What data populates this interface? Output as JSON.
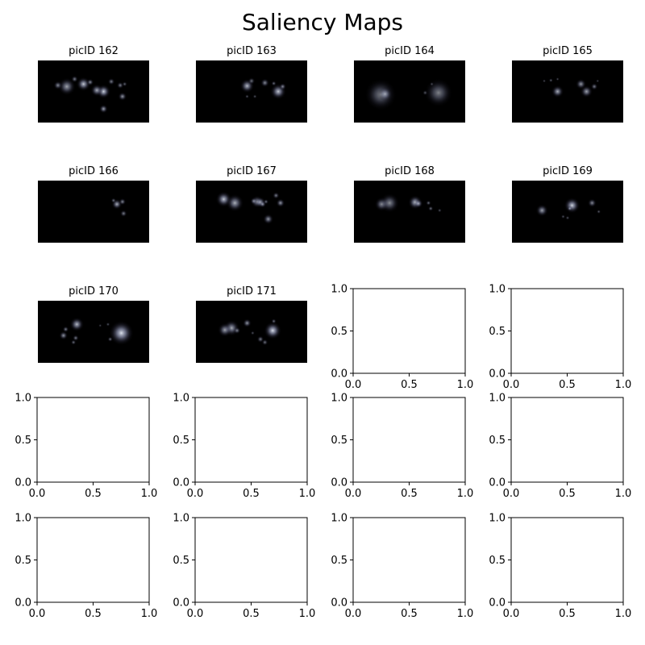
{
  "chart_data": {
    "type": "heatmap",
    "title": "Saliency Maps",
    "colormap": "bone",
    "grid": false,
    "layout": {
      "rows": 5,
      "cols": 4
    },
    "maps": [
      {
        "title": "picID 162",
        "spots": [
          {
            "x": 0.26,
            "y": 0.42,
            "r": 0.05,
            "v": 0.7
          },
          {
            "x": 0.41,
            "y": 0.38,
            "r": 0.04,
            "v": 0.85
          },
          {
            "x": 0.59,
            "y": 0.5,
            "r": 0.04,
            "v": 0.9
          },
          {
            "x": 0.53,
            "y": 0.48,
            "r": 0.035,
            "v": 0.75
          },
          {
            "x": 0.18,
            "y": 0.4,
            "r": 0.025,
            "v": 0.6
          },
          {
            "x": 0.33,
            "y": 0.3,
            "r": 0.02,
            "v": 0.55
          },
          {
            "x": 0.47,
            "y": 0.35,
            "r": 0.02,
            "v": 0.6
          },
          {
            "x": 0.66,
            "y": 0.34,
            "r": 0.02,
            "v": 0.55
          },
          {
            "x": 0.74,
            "y": 0.4,
            "r": 0.02,
            "v": 0.55
          },
          {
            "x": 0.76,
            "y": 0.58,
            "r": 0.025,
            "v": 0.65
          },
          {
            "x": 0.59,
            "y": 0.78,
            "r": 0.025,
            "v": 0.7
          },
          {
            "x": 0.78,
            "y": 0.38,
            "r": 0.015,
            "v": 0.45
          }
        ]
      },
      {
        "title": "picID 163",
        "spots": [
          {
            "x": 0.46,
            "y": 0.41,
            "r": 0.04,
            "v": 0.8
          },
          {
            "x": 0.74,
            "y": 0.5,
            "r": 0.045,
            "v": 0.85
          },
          {
            "x": 0.62,
            "y": 0.36,
            "r": 0.025,
            "v": 0.6
          },
          {
            "x": 0.5,
            "y": 0.33,
            "r": 0.02,
            "v": 0.5
          },
          {
            "x": 0.78,
            "y": 0.42,
            "r": 0.02,
            "v": 0.6
          },
          {
            "x": 0.7,
            "y": 0.37,
            "r": 0.015,
            "v": 0.5
          },
          {
            "x": 0.46,
            "y": 0.58,
            "r": 0.012,
            "v": 0.4
          },
          {
            "x": 0.53,
            "y": 0.58,
            "r": 0.012,
            "v": 0.4
          }
        ]
      },
      {
        "title": "picID 164",
        "spots": [
          {
            "x": 0.24,
            "y": 0.55,
            "r": 0.09,
            "v": 0.55
          },
          {
            "x": 0.28,
            "y": 0.54,
            "r": 0.04,
            "v": 0.6
          },
          {
            "x": 0.76,
            "y": 0.52,
            "r": 0.08,
            "v": 0.55
          },
          {
            "x": 0.64,
            "y": 0.52,
            "r": 0.015,
            "v": 0.4
          },
          {
            "x": 0.7,
            "y": 0.38,
            "r": 0.012,
            "v": 0.35
          }
        ]
      },
      {
        "title": "picID 165",
        "spots": [
          {
            "x": 0.41,
            "y": 0.5,
            "r": 0.035,
            "v": 0.75
          },
          {
            "x": 0.67,
            "y": 0.5,
            "r": 0.035,
            "v": 0.7
          },
          {
            "x": 0.62,
            "y": 0.38,
            "r": 0.03,
            "v": 0.65
          },
          {
            "x": 0.74,
            "y": 0.42,
            "r": 0.02,
            "v": 0.55
          },
          {
            "x": 0.35,
            "y": 0.32,
            "r": 0.012,
            "v": 0.45
          },
          {
            "x": 0.29,
            "y": 0.33,
            "r": 0.01,
            "v": 0.4
          },
          {
            "x": 0.41,
            "y": 0.3,
            "r": 0.01,
            "v": 0.4
          },
          {
            "x": 0.77,
            "y": 0.33,
            "r": 0.01,
            "v": 0.35
          }
        ]
      },
      {
        "title": "picID 166",
        "spots": [
          {
            "x": 0.71,
            "y": 0.38,
            "r": 0.03,
            "v": 0.75
          },
          {
            "x": 0.76,
            "y": 0.34,
            "r": 0.02,
            "v": 0.6
          },
          {
            "x": 0.68,
            "y": 0.32,
            "r": 0.015,
            "v": 0.5
          },
          {
            "x": 0.77,
            "y": 0.53,
            "r": 0.02,
            "v": 0.55
          }
        ]
      },
      {
        "title": "picID 167",
        "spots": [
          {
            "x": 0.25,
            "y": 0.3,
            "r": 0.045,
            "v": 0.85
          },
          {
            "x": 0.35,
            "y": 0.36,
            "r": 0.05,
            "v": 0.75
          },
          {
            "x": 0.55,
            "y": 0.34,
            "r": 0.035,
            "v": 0.7
          },
          {
            "x": 0.58,
            "y": 0.35,
            "r": 0.03,
            "v": 0.7
          },
          {
            "x": 0.6,
            "y": 0.38,
            "r": 0.02,
            "v": 0.6
          },
          {
            "x": 0.52,
            "y": 0.33,
            "r": 0.02,
            "v": 0.55
          },
          {
            "x": 0.76,
            "y": 0.36,
            "r": 0.025,
            "v": 0.65
          },
          {
            "x": 0.72,
            "y": 0.24,
            "r": 0.02,
            "v": 0.55
          },
          {
            "x": 0.65,
            "y": 0.62,
            "r": 0.03,
            "v": 0.65
          },
          {
            "x": 0.63,
            "y": 0.34,
            "r": 0.015,
            "v": 0.5
          }
        ]
      },
      {
        "title": "picID 168",
        "spots": [
          {
            "x": 0.25,
            "y": 0.38,
            "r": 0.04,
            "v": 0.65
          },
          {
            "x": 0.32,
            "y": 0.36,
            "r": 0.055,
            "v": 0.6
          },
          {
            "x": 0.55,
            "y": 0.35,
            "r": 0.04,
            "v": 0.8
          },
          {
            "x": 0.58,
            "y": 0.37,
            "r": 0.025,
            "v": 0.65
          },
          {
            "x": 0.67,
            "y": 0.36,
            "r": 0.015,
            "v": 0.5
          },
          {
            "x": 0.69,
            "y": 0.45,
            "r": 0.015,
            "v": 0.5
          },
          {
            "x": 0.77,
            "y": 0.48,
            "r": 0.012,
            "v": 0.4
          }
        ]
      },
      {
        "title": "picID 169",
        "spots": [
          {
            "x": 0.54,
            "y": 0.4,
            "r": 0.045,
            "v": 0.9
          },
          {
            "x": 0.27,
            "y": 0.48,
            "r": 0.035,
            "v": 0.7
          },
          {
            "x": 0.72,
            "y": 0.36,
            "r": 0.025,
            "v": 0.6
          },
          {
            "x": 0.52,
            "y": 0.45,
            "r": 0.015,
            "v": 0.55
          },
          {
            "x": 0.78,
            "y": 0.5,
            "r": 0.012,
            "v": 0.45
          },
          {
            "x": 0.46,
            "y": 0.58,
            "r": 0.012,
            "v": 0.4
          },
          {
            "x": 0.5,
            "y": 0.6,
            "r": 0.012,
            "v": 0.4
          }
        ]
      },
      {
        "title": "picID 170",
        "spots": [
          {
            "x": 0.75,
            "y": 0.52,
            "r": 0.07,
            "v": 0.95
          },
          {
            "x": 0.35,
            "y": 0.38,
            "r": 0.04,
            "v": 0.8
          },
          {
            "x": 0.23,
            "y": 0.56,
            "r": 0.025,
            "v": 0.65
          },
          {
            "x": 0.25,
            "y": 0.46,
            "r": 0.018,
            "v": 0.55
          },
          {
            "x": 0.34,
            "y": 0.6,
            "r": 0.018,
            "v": 0.55
          },
          {
            "x": 0.32,
            "y": 0.67,
            "r": 0.015,
            "v": 0.5
          },
          {
            "x": 0.65,
            "y": 0.62,
            "r": 0.015,
            "v": 0.5
          },
          {
            "x": 0.63,
            "y": 0.38,
            "r": 0.012,
            "v": 0.4
          },
          {
            "x": 0.56,
            "y": 0.4,
            "r": 0.01,
            "v": 0.35
          }
        ]
      },
      {
        "title": "picID 171",
        "spots": [
          {
            "x": 0.69,
            "y": 0.48,
            "r": 0.05,
            "v": 0.95
          },
          {
            "x": 0.32,
            "y": 0.44,
            "r": 0.045,
            "v": 0.75
          },
          {
            "x": 0.26,
            "y": 0.47,
            "r": 0.04,
            "v": 0.7
          },
          {
            "x": 0.46,
            "y": 0.36,
            "r": 0.025,
            "v": 0.65
          },
          {
            "x": 0.37,
            "y": 0.48,
            "r": 0.02,
            "v": 0.55
          },
          {
            "x": 0.7,
            "y": 0.33,
            "r": 0.015,
            "v": 0.5
          },
          {
            "x": 0.58,
            "y": 0.62,
            "r": 0.02,
            "v": 0.55
          },
          {
            "x": 0.62,
            "y": 0.67,
            "r": 0.018,
            "v": 0.5
          },
          {
            "x": 0.51,
            "y": 0.52,
            "r": 0.012,
            "v": 0.4
          }
        ]
      }
    ],
    "empty_axes": {
      "count": 10,
      "xlim": [
        0,
        1
      ],
      "ylim": [
        0,
        1
      ],
      "xticks": [
        "0.0",
        "0.5",
        "1.0"
      ],
      "yticks": [
        "0.0",
        "0.5",
        "1.0"
      ]
    }
  }
}
